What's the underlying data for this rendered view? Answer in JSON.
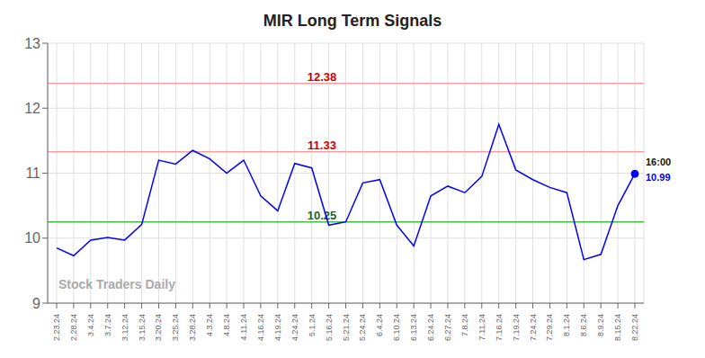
{
  "chart_data": {
    "type": "line",
    "title": "MIR Long Term Signals",
    "color": "blue",
    "ylim": [
      9,
      13
    ],
    "yticks": [
      9,
      10,
      11,
      12,
      13
    ],
    "grid": true,
    "categories": [
      "2.23.24",
      "2.28.24",
      "3.4.24",
      "3.7.24",
      "3.12.24",
      "3.15.24",
      "3.20.24",
      "3.25.24",
      "3.28.24",
      "4.3.24",
      "4.8.24",
      "4.11.24",
      "4.16.24",
      "4.19.24",
      "4.24.24",
      "5.1.24",
      "5.16.24",
      "5.21.24",
      "5.24.24",
      "6.4.24",
      "6.10.24",
      "6.13.24",
      "6.24.24",
      "6.27.24",
      "7.8.24",
      "7.11.24",
      "7.16.24",
      "7.19.24",
      "7.24.24",
      "7.29.24",
      "8.1.24",
      "8.6.24",
      "8.9.24",
      "8.15.24",
      "8.22.24"
    ],
    "values": [
      9.85,
      9.73,
      9.97,
      10.01,
      9.97,
      10.21,
      11.2,
      11.14,
      11.35,
      11.22,
      11.0,
      11.2,
      10.65,
      10.42,
      11.15,
      11.08,
      10.2,
      10.25,
      10.85,
      10.9,
      10.2,
      9.88,
      10.65,
      10.8,
      10.7,
      10.95,
      11.75,
      11.05,
      10.9,
      10.78,
      10.7,
      9.67,
      9.75,
      10.5,
      10.99
    ],
    "reference_lines": [
      {
        "y": 12.38,
        "text": "12.38",
        "color": "#cc0000",
        "line_color": "#f4a0a0"
      },
      {
        "y": 11.33,
        "text": "11.33",
        "color": "#cc0000",
        "line_color": "#f4a0a0"
      },
      {
        "y": 10.25,
        "text": "10.25",
        "color": "#226622",
        "line_color": "#44bb44"
      }
    ],
    "end_annotations": [
      {
        "text": "16:00",
        "color": "#111111"
      },
      {
        "text": "10.99",
        "y": 10.99,
        "color": "blue"
      }
    ],
    "watermark": {
      "text": "Stock Traders Daily",
      "color": "#aaaaaa"
    }
  }
}
